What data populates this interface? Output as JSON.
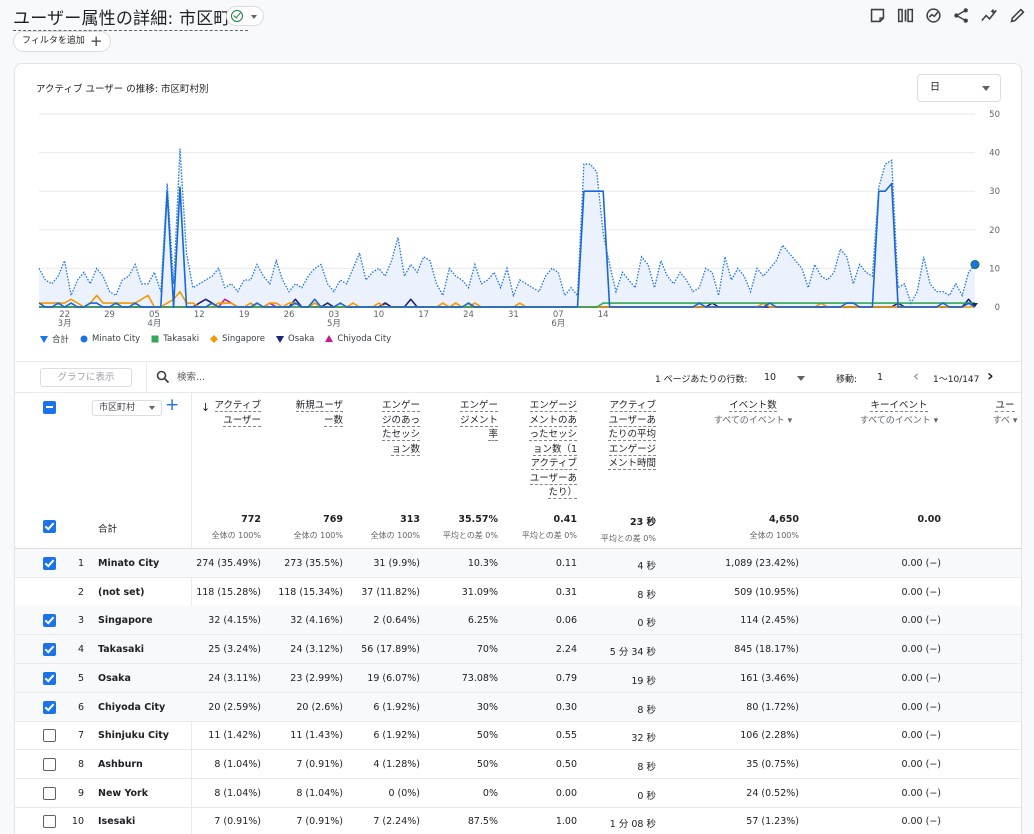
{
  "header": {
    "title": "ユーザー属性の詳細: 市区町村",
    "add_filter_label": "フィルタを追加",
    "add_filter_plus": "+"
  },
  "chart": {
    "title": "アクティブ ユーザー の推移: 市区町村別",
    "granularity": "日"
  },
  "chart_data": {
    "type": "line",
    "title": "アクティブ ユーザー の推移: 市区町村別",
    "xlabel": "",
    "ylabel": "",
    "ylim": [
      0,
      50
    ],
    "yticks": [
      0,
      10,
      20,
      30,
      40,
      50
    ],
    "xtick_labels": [
      {
        "day": "22",
        "month": "3月"
      },
      {
        "day": "29",
        "month": ""
      },
      {
        "day": "05",
        "month": "4月"
      },
      {
        "day": "12",
        "month": ""
      },
      {
        "day": "19",
        "month": ""
      },
      {
        "day": "26",
        "month": ""
      },
      {
        "day": "03",
        "month": "5月"
      },
      {
        "day": "10",
        "month": ""
      },
      {
        "day": "17",
        "month": ""
      },
      {
        "day": "24",
        "month": ""
      },
      {
        "day": "31",
        "month": ""
      },
      {
        "day": "07",
        "month": "6月"
      },
      {
        "day": "14",
        "month": ""
      }
    ],
    "x_start_date": "2024-03-18",
    "series": [
      {
        "name": "合計",
        "style": "dotted-area",
        "color": "#1a73e8",
        "values": [
          10,
          7,
          6,
          8,
          12,
          3,
          7,
          9,
          6,
          10,
          8,
          4,
          3,
          7,
          8,
          11,
          6,
          6,
          9,
          4,
          32,
          6,
          41,
          14,
          5,
          6,
          7,
          8,
          10,
          5,
          6,
          4,
          7,
          7,
          11,
          8,
          6,
          12,
          7,
          4,
          6,
          5,
          8,
          10,
          11,
          6,
          4,
          7,
          6,
          10,
          14,
          7,
          9,
          10,
          8,
          12,
          18,
          8,
          11,
          9,
          13,
          12,
          6,
          3,
          10,
          8,
          7,
          5,
          11,
          6,
          7,
          9,
          5,
          10,
          3,
          7,
          6,
          5,
          4,
          8,
          10,
          9,
          3,
          5,
          3,
          37,
          37,
          35,
          19,
          11,
          4,
          9,
          7,
          5,
          13,
          11,
          5,
          12,
          8,
          6,
          9,
          7,
          4,
          5,
          10,
          9,
          3,
          13,
          7,
          10,
          8,
          4,
          10,
          8,
          10,
          12,
          16,
          14,
          12,
          10,
          5,
          11,
          8,
          7,
          9,
          15,
          13,
          6,
          11,
          9,
          8,
          31,
          37,
          38,
          5,
          6,
          1,
          4,
          13,
          6,
          4,
          4,
          3,
          6,
          3,
          9,
          11
        ]
      },
      {
        "name": "Minato City",
        "style": "solid",
        "color": "#1967d2",
        "values": [
          1,
          0,
          0,
          1,
          0,
          1,
          0,
          0,
          1,
          1,
          0,
          0,
          1,
          0,
          0,
          1,
          0,
          0,
          0,
          0,
          30,
          0,
          31,
          0,
          0,
          0,
          0,
          1,
          0,
          0,
          0,
          0,
          0,
          0,
          1,
          0,
          0,
          0,
          0,
          0,
          1,
          0,
          0,
          2,
          0,
          0,
          0,
          1,
          0,
          0,
          0,
          0,
          0,
          0,
          0,
          0,
          0,
          0,
          0,
          0,
          0,
          0,
          0,
          0,
          0,
          0,
          0,
          1,
          0,
          0,
          0,
          0,
          0,
          0,
          0,
          0,
          0,
          0,
          0,
          0,
          0,
          0,
          0,
          0,
          0,
          30,
          30,
          30,
          30,
          0,
          0,
          0,
          0,
          0,
          0,
          0,
          0,
          0,
          0,
          0,
          0,
          0,
          0,
          1,
          0,
          0,
          0,
          0,
          0,
          0,
          0,
          0,
          0,
          0,
          1,
          0,
          0,
          0,
          0,
          0,
          0,
          0,
          0,
          0,
          0,
          0,
          1,
          1,
          0,
          0,
          0,
          30,
          30,
          32,
          0,
          0,
          0,
          0,
          0,
          0,
          0,
          1,
          0,
          0,
          0,
          1,
          0
        ]
      },
      {
        "name": "Takasaki",
        "style": "solid",
        "color": "#34a853",
        "values": [
          0,
          0,
          0,
          0,
          0,
          0,
          0,
          0,
          0,
          0,
          0,
          0,
          0,
          0,
          0,
          0,
          0,
          0,
          0,
          0,
          0,
          0,
          0,
          0,
          0,
          0,
          0,
          0,
          0,
          0,
          0,
          0,
          0,
          0,
          0,
          0,
          0,
          0,
          0,
          0,
          0,
          0,
          0,
          0,
          0,
          0,
          0,
          0,
          0,
          0,
          0,
          0,
          0,
          0,
          0,
          0,
          0,
          0,
          0,
          0,
          0,
          0,
          0,
          0,
          0,
          0,
          0,
          0,
          0,
          0,
          0,
          0,
          0,
          0,
          0,
          0,
          0,
          0,
          0,
          0,
          0,
          0,
          0,
          0,
          0,
          0,
          0,
          0,
          1,
          1,
          1,
          1,
          1,
          1,
          1,
          1,
          1,
          1,
          1,
          1,
          1,
          1,
          1,
          1,
          1,
          1,
          1,
          1,
          1,
          1,
          1,
          1,
          1,
          1,
          1,
          1,
          1,
          1,
          1,
          1,
          1,
          1,
          1,
          1,
          1,
          1,
          1,
          1,
          1,
          1,
          1,
          1,
          1,
          1,
          1,
          1,
          1,
          1,
          1,
          1,
          1,
          1,
          1,
          1,
          1,
          1,
          1
        ]
      },
      {
        "name": "Singapore",
        "style": "solid",
        "color": "#f29900",
        "values": [
          1,
          1,
          1,
          1,
          1,
          2,
          1,
          0,
          1,
          3,
          1,
          1,
          1,
          1,
          1,
          1,
          2,
          3,
          0,
          0,
          1,
          2,
          4,
          1,
          1,
          0,
          0,
          0,
          1,
          1,
          1,
          0,
          0,
          1,
          0,
          0,
          1,
          1,
          0,
          1,
          1,
          0,
          0,
          1,
          0,
          0,
          0,
          0,
          0,
          1,
          0,
          0,
          0,
          1,
          0,
          0,
          0,
          0,
          0,
          0,
          0,
          0,
          0,
          1,
          0,
          1,
          0,
          0,
          1,
          0,
          0,
          0,
          0,
          0,
          0,
          1,
          0,
          0,
          0,
          0,
          0,
          0,
          0,
          0,
          0,
          0,
          0,
          0,
          0,
          0,
          0,
          0,
          0,
          0,
          0,
          0,
          0,
          0,
          0,
          0,
          0,
          0,
          0,
          0,
          0,
          0,
          0,
          0,
          0,
          0,
          0,
          0,
          0,
          1,
          0,
          0,
          0,
          0,
          0,
          0,
          0,
          0,
          1,
          0,
          0,
          0,
          0,
          0,
          0,
          0,
          0,
          0,
          0,
          0,
          0,
          0,
          0,
          0,
          0,
          0,
          0,
          0,
          0,
          0,
          0,
          0,
          0
        ]
      },
      {
        "name": "Osaka",
        "style": "solid",
        "color": "#1a237e",
        "values": [
          0,
          0,
          0,
          0,
          0,
          0,
          0,
          0,
          0,
          0,
          0,
          0,
          0,
          0,
          0,
          0,
          0,
          0,
          0,
          0,
          0,
          0,
          0,
          0,
          0,
          1,
          2,
          1,
          0,
          0,
          0,
          0,
          0,
          0,
          0,
          0,
          0,
          0,
          0,
          0,
          2,
          0,
          0,
          0,
          0,
          1,
          0,
          0,
          0,
          0,
          0,
          0,
          0,
          0,
          1,
          0,
          0,
          0,
          2,
          0,
          0,
          0,
          0,
          0,
          0,
          0,
          0,
          0,
          0,
          0,
          0,
          0,
          0,
          0,
          0,
          0,
          0,
          0,
          0,
          0,
          0,
          0,
          0,
          0,
          0,
          0,
          0,
          0,
          0,
          0,
          0,
          0,
          0,
          0,
          0,
          0,
          0,
          0,
          0,
          0,
          0,
          0,
          0,
          0,
          0,
          1,
          0,
          0,
          0,
          0,
          0,
          0,
          0,
          0,
          0,
          0,
          0,
          0,
          0,
          0,
          0,
          0,
          0,
          0,
          0,
          0,
          0,
          0,
          0,
          0,
          0,
          0,
          0,
          0,
          1,
          0,
          0,
          0,
          0,
          0,
          0,
          0,
          0,
          0,
          0,
          2,
          0
        ]
      },
      {
        "name": "Chiyoda City",
        "style": "solid",
        "color": "#d01884",
        "values": [
          0,
          0,
          0,
          0,
          0,
          0,
          0,
          0,
          0,
          0,
          0,
          0,
          0,
          0,
          0,
          0,
          0,
          0,
          0,
          0,
          0,
          0,
          0,
          0,
          0,
          0,
          0,
          0,
          0,
          2,
          1,
          0,
          0,
          0,
          0,
          0,
          1,
          0,
          0,
          0,
          0,
          0,
          0,
          0,
          0,
          0,
          0,
          0,
          0,
          0,
          0,
          0,
          0,
          0,
          1,
          0,
          0,
          0,
          0,
          0,
          0,
          0,
          0,
          0,
          0,
          0,
          0,
          0,
          0,
          0,
          0,
          0,
          0,
          0,
          0,
          0,
          0,
          0,
          0,
          0,
          0,
          0,
          0,
          0,
          0,
          0,
          0,
          0,
          0,
          0,
          0,
          0,
          0,
          0,
          0,
          0,
          0,
          0,
          0,
          0,
          0,
          0,
          0,
          0,
          0,
          0,
          0,
          0,
          0,
          0,
          0,
          0,
          0,
          0,
          0,
          0,
          0,
          0,
          0,
          0,
          0,
          0,
          0,
          0,
          0,
          0,
          0,
          0,
          0,
          0,
          0,
          0,
          0,
          0,
          0,
          0,
          0,
          0,
          0,
          0,
          0,
          0,
          0,
          0,
          0,
          1,
          0
        ]
      }
    ],
    "legend_position": "bottom-left",
    "grid": true
  },
  "legend": [
    {
      "label": "合計",
      "color": "#1a73e8",
      "shape": "pin"
    },
    {
      "label": "Minato City",
      "color": "#1a73e8",
      "shape": "circle"
    },
    {
      "label": "Takasaki",
      "color": "#34a853",
      "shape": "square"
    },
    {
      "label": "Singapore",
      "color": "#f29900",
      "shape": "diamond"
    },
    {
      "label": "Osaka",
      "color": "#1a237e",
      "shape": "triangle-down"
    },
    {
      "label": "Chiyoda City",
      "color": "#d01884",
      "shape": "triangle-up"
    }
  ],
  "table_toolbar": {
    "plot_button": "グラフに表示",
    "search_placeholder": "検索...",
    "rows_per_page_label": "1 ページあたりの行数:",
    "rows_per_page": "10",
    "goto_label": "移動:",
    "goto_value": "1",
    "range": "1〜10/147"
  },
  "table": {
    "dimension": "市区町村",
    "columns": [
      {
        "lines": [
          "アクティブ",
          "ユーザー"
        ],
        "sub": ""
      },
      {
        "lines": [
          "新規ユーザ",
          "ー数"
        ],
        "sub": ""
      },
      {
        "lines": [
          "エンゲー",
          "ジのあっ",
          "たセッシ",
          "ョン数"
        ],
        "sub": ""
      },
      {
        "lines": [
          "エンゲー",
          "ジメント",
          "率"
        ],
        "sub": ""
      },
      {
        "lines": [
          "エンゲージ",
          "メントのあ",
          "ったセッシ",
          "ョン数（1",
          "アクティブ",
          "ユーザーあ",
          "たり）"
        ],
        "sub": ""
      },
      {
        "lines": [
          "アクティブ",
          "ユーザーあ",
          "たりの平均",
          "エンゲージ",
          "メント時間"
        ],
        "sub": ""
      },
      {
        "lines": [
          "イベント数"
        ],
        "sub": "すべてのイベント"
      },
      {
        "lines": [
          "キーイベント"
        ],
        "sub": "すべてのイベント"
      },
      {
        "lines": [
          "ユー"
        ],
        "sub": "すべ"
      }
    ],
    "totals": {
      "label": "合計",
      "values": [
        {
          "v": "772",
          "s": "全体の 100%"
        },
        {
          "v": "769",
          "s": "全体の 100%"
        },
        {
          "v": "313",
          "s": "全体の 100%"
        },
        {
          "v": "35.57%",
          "s": "平均との差 0%"
        },
        {
          "v": "0.41",
          "s": "平均との差 0%"
        },
        {
          "v": "23 秒",
          "s": "平均との差 0%"
        },
        {
          "v": "4,650",
          "s": "全体の 100%"
        },
        {
          "v": "0.00",
          "s": ""
        }
      ]
    },
    "rows": [
      {
        "idx": "1",
        "checked": true,
        "name": "Minato City",
        "cells": [
          "274 (35.49%)",
          "273 (35.5%)",
          "31 (9.9%)",
          "10.3%",
          "0.11",
          "4 秒",
          "1,089 (23.42%)",
          "0.00 (−)"
        ]
      },
      {
        "idx": "2",
        "checked": false,
        "nobox": true,
        "name": "(not set)",
        "cells": [
          "118 (15.28%)",
          "118 (15.34%)",
          "37 (11.82%)",
          "31.09%",
          "0.31",
          "8 秒",
          "509 (10.95%)",
          "0.00 (−)"
        ]
      },
      {
        "idx": "3",
        "checked": true,
        "name": "Singapore",
        "cells": [
          "32 (4.15%)",
          "32 (4.16%)",
          "2 (0.64%)",
          "6.25%",
          "0.06",
          "0 秒",
          "114 (2.45%)",
          "0.00 (−)"
        ]
      },
      {
        "idx": "4",
        "checked": true,
        "name": "Takasaki",
        "cells": [
          "25 (3.24%)",
          "24 (3.12%)",
          "56 (17.89%)",
          "70%",
          "2.24",
          "5 分 34 秒",
          "845 (18.17%)",
          "0.00 (−)"
        ]
      },
      {
        "idx": "5",
        "checked": true,
        "name": "Osaka",
        "cells": [
          "24 (3.11%)",
          "23 (2.99%)",
          "19 (6.07%)",
          "73.08%",
          "0.79",
          "19 秒",
          "161 (3.46%)",
          "0.00 (−)"
        ]
      },
      {
        "idx": "6",
        "checked": true,
        "name": "Chiyoda City",
        "cells": [
          "20 (2.59%)",
          "20 (2.6%)",
          "6 (1.92%)",
          "30%",
          "0.30",
          "8 秒",
          "80 (1.72%)",
          "0.00 (−)"
        ]
      },
      {
        "idx": "7",
        "checked": false,
        "name": "Shinjuku City",
        "cells": [
          "11 (1.42%)",
          "11 (1.43%)",
          "6 (1.92%)",
          "50%",
          "0.55",
          "32 秒",
          "106 (2.28%)",
          "0.00 (−)"
        ]
      },
      {
        "idx": "8",
        "checked": false,
        "name": "Ashburn",
        "cells": [
          "8 (1.04%)",
          "7 (0.91%)",
          "4 (1.28%)",
          "50%",
          "0.50",
          "8 秒",
          "35 (0.75%)",
          "0.00 (−)"
        ]
      },
      {
        "idx": "9",
        "checked": false,
        "name": "New York",
        "cells": [
          "8 (1.04%)",
          "8 (1.04%)",
          "0 (0%)",
          "0%",
          "0.00",
          "0 秒",
          "24 (0.52%)",
          "0.00 (−)"
        ]
      },
      {
        "idx": "10",
        "checked": false,
        "name": "Isesaki",
        "cells": [
          "7 (0.91%)",
          "7 (0.91%)",
          "7 (2.24%)",
          "87.5%",
          "1.00",
          "1 分 08 秒",
          "57 (1.23%)",
          "0.00 (−)"
        ]
      }
    ]
  },
  "icons": [
    "report-icon",
    "compare-icon",
    "insights-icon",
    "share-icon",
    "trend-icon",
    "edit-icon"
  ]
}
